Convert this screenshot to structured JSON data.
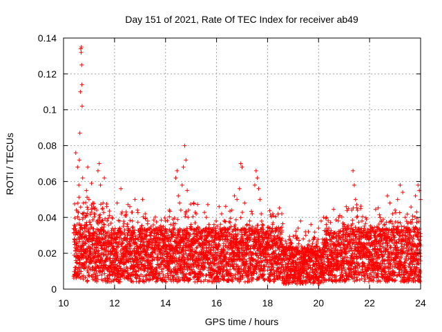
{
  "chart_data": {
    "type": "scatter",
    "title": "Day 151 of 2021, Rate Of TEC Index for receiver ab49",
    "xlabel": "GPS time / hours",
    "ylabel": "ROTI / TECUs",
    "xlim": [
      10,
      24
    ],
    "ylim": [
      0,
      0.14
    ],
    "xticks": [
      10,
      12,
      14,
      16,
      18,
      20,
      22,
      24
    ],
    "xtick_labels": [
      "10",
      "12",
      "14",
      "16",
      "18",
      "20",
      "22",
      "24"
    ],
    "yticks": [
      0,
      0.02,
      0.04,
      0.06,
      0.08,
      0.1,
      0.12,
      0.14
    ],
    "ytick_labels": [
      "0",
      "0.02",
      "0.04",
      "0.06",
      "0.08",
      "0.1",
      "0.12",
      "0.14"
    ],
    "grid": true,
    "marker": "+",
    "color": "#ff0000",
    "series": [
      {
        "name": "ROTI",
        "points": [
          [
            10.42,
            0.028
          ],
          [
            10.45,
            0.012
          ],
          [
            10.48,
            0.076
          ],
          [
            10.5,
            0.044
          ],
          [
            10.52,
            0.018
          ],
          [
            10.55,
            0.068
          ],
          [
            10.58,
            0.032
          ],
          [
            10.6,
            0.058
          ],
          [
            10.62,
            0.072
          ],
          [
            10.64,
            0.087
          ],
          [
            10.66,
            0.11
          ],
          [
            10.68,
            0.134
          ],
          [
            10.69,
            0.132
          ],
          [
            10.7,
            0.135
          ],
          [
            10.71,
            0.125
          ],
          [
            10.72,
            0.114
          ],
          [
            10.73,
            0.102
          ],
          [
            10.75,
            0.062
          ],
          [
            10.78,
            0.048
          ],
          [
            10.8,
            0.022
          ],
          [
            10.85,
            0.04
          ],
          [
            10.9,
            0.055
          ],
          [
            10.95,
            0.068
          ],
          [
            11.0,
            0.05
          ],
          [
            11.05,
            0.036
          ],
          [
            11.1,
            0.059
          ],
          [
            11.15,
            0.048
          ],
          [
            11.2,
            0.042
          ],
          [
            11.25,
            0.032
          ],
          [
            11.3,
            0.044
          ],
          [
            11.35,
            0.066
          ],
          [
            11.4,
            0.07
          ],
          [
            11.45,
            0.058
          ],
          [
            11.5,
            0.038
          ],
          [
            11.55,
            0.048
          ],
          [
            11.6,
            0.062
          ],
          [
            11.7,
            0.03
          ],
          [
            11.8,
            0.026
          ],
          [
            11.9,
            0.04
          ],
          [
            12.0,
            0.022
          ],
          [
            12.1,
            0.048
          ],
          [
            12.2,
            0.038
          ],
          [
            12.25,
            0.056
          ],
          [
            12.3,
            0.043
          ],
          [
            12.4,
            0.033
          ],
          [
            12.5,
            0.028
          ],
          [
            12.6,
            0.046
          ],
          [
            12.7,
            0.038
          ],
          [
            12.8,
            0.05
          ],
          [
            12.9,
            0.044
          ],
          [
            13.0,
            0.032
          ],
          [
            13.1,
            0.05
          ],
          [
            13.2,
            0.042
          ],
          [
            13.3,
            0.038
          ],
          [
            13.4,
            0.03
          ],
          [
            13.5,
            0.026
          ],
          [
            13.6,
            0.022
          ],
          [
            13.7,
            0.034
          ],
          [
            13.8,
            0.028
          ],
          [
            13.9,
            0.024
          ],
          [
            14.0,
            0.038
          ],
          [
            14.1,
            0.03
          ],
          [
            14.15,
            0.044
          ],
          [
            14.2,
            0.036
          ],
          [
            14.3,
            0.03
          ],
          [
            14.4,
            0.062
          ],
          [
            14.45,
            0.066
          ],
          [
            14.5,
            0.052
          ],
          [
            14.55,
            0.048
          ],
          [
            14.6,
            0.044
          ],
          [
            14.65,
            0.058
          ],
          [
            14.7,
            0.068
          ],
          [
            14.75,
            0.08
          ],
          [
            14.8,
            0.072
          ],
          [
            14.85,
            0.055
          ],
          [
            14.9,
            0.044
          ],
          [
            15.0,
            0.036
          ],
          [
            15.1,
            0.048
          ],
          [
            15.2,
            0.042
          ],
          [
            15.3,
            0.032
          ],
          [
            15.4,
            0.028
          ],
          [
            15.5,
            0.026
          ],
          [
            15.6,
            0.04
          ],
          [
            15.7,
            0.036
          ],
          [
            15.8,
            0.03
          ],
          [
            15.9,
            0.036
          ],
          [
            16.0,
            0.028
          ],
          [
            16.1,
            0.046
          ],
          [
            16.2,
            0.042
          ],
          [
            16.3,
            0.038
          ],
          [
            16.4,
            0.03
          ],
          [
            16.5,
            0.034
          ],
          [
            16.6,
            0.044
          ],
          [
            16.7,
            0.052
          ],
          [
            16.8,
            0.05
          ],
          [
            16.9,
            0.056
          ],
          [
            16.95,
            0.07
          ],
          [
            17.0,
            0.068
          ],
          [
            17.1,
            0.048
          ],
          [
            17.2,
            0.036
          ],
          [
            17.3,
            0.038
          ],
          [
            17.4,
            0.042
          ],
          [
            17.5,
            0.058
          ],
          [
            17.55,
            0.066
          ],
          [
            17.6,
            0.062
          ],
          [
            17.65,
            0.056
          ],
          [
            17.7,
            0.05
          ],
          [
            17.75,
            0.042
          ],
          [
            17.8,
            0.036
          ],
          [
            17.9,
            0.03
          ],
          [
            18.0,
            0.026
          ],
          [
            18.1,
            0.034
          ],
          [
            18.2,
            0.036
          ],
          [
            18.3,
            0.032
          ],
          [
            18.4,
            0.03
          ],
          [
            18.5,
            0.028
          ],
          [
            18.6,
            0.024
          ],
          [
            18.7,
            0.02
          ],
          [
            18.8,
            0.022
          ],
          [
            18.9,
            0.026
          ],
          [
            19.0,
            0.018
          ],
          [
            19.1,
            0.03
          ],
          [
            19.2,
            0.034
          ],
          [
            19.3,
            0.038
          ],
          [
            19.4,
            0.028
          ],
          [
            19.5,
            0.03
          ],
          [
            19.6,
            0.032
          ],
          [
            19.7,
            0.036
          ],
          [
            19.8,
            0.028
          ],
          [
            19.9,
            0.024
          ],
          [
            20.0,
            0.034
          ],
          [
            20.1,
            0.038
          ],
          [
            20.2,
            0.04
          ],
          [
            20.3,
            0.036
          ],
          [
            20.4,
            0.034
          ],
          [
            20.5,
            0.03
          ],
          [
            20.6,
            0.02
          ],
          [
            20.7,
            0.024
          ],
          [
            20.8,
            0.028
          ],
          [
            20.9,
            0.026
          ],
          [
            21.0,
            0.022
          ],
          [
            21.1,
            0.028
          ],
          [
            21.2,
            0.03
          ],
          [
            21.3,
            0.044
          ],
          [
            21.35,
            0.066
          ],
          [
            21.4,
            0.058
          ],
          [
            21.45,
            0.05
          ],
          [
            21.5,
            0.04
          ],
          [
            21.6,
            0.032
          ],
          [
            21.7,
            0.038
          ],
          [
            21.8,
            0.034
          ],
          [
            21.9,
            0.03
          ],
          [
            22.0,
            0.028
          ],
          [
            22.1,
            0.026
          ],
          [
            22.2,
            0.02
          ],
          [
            22.3,
            0.018
          ],
          [
            22.4,
            0.024
          ],
          [
            22.5,
            0.03
          ],
          [
            22.6,
            0.036
          ],
          [
            22.7,
            0.052
          ],
          [
            22.8,
            0.048
          ],
          [
            22.9,
            0.042
          ],
          [
            23.0,
            0.044
          ],
          [
            23.1,
            0.05
          ],
          [
            23.2,
            0.058
          ],
          [
            23.3,
            0.054
          ],
          [
            23.4,
            0.04
          ],
          [
            23.5,
            0.034
          ],
          [
            23.6,
            0.03
          ],
          [
            23.7,
            0.028
          ],
          [
            23.8,
            0.052
          ],
          [
            23.9,
            0.058
          ],
          [
            23.95,
            0.055
          ],
          [
            24.0,
            0.05
          ]
        ]
      }
    ]
  }
}
